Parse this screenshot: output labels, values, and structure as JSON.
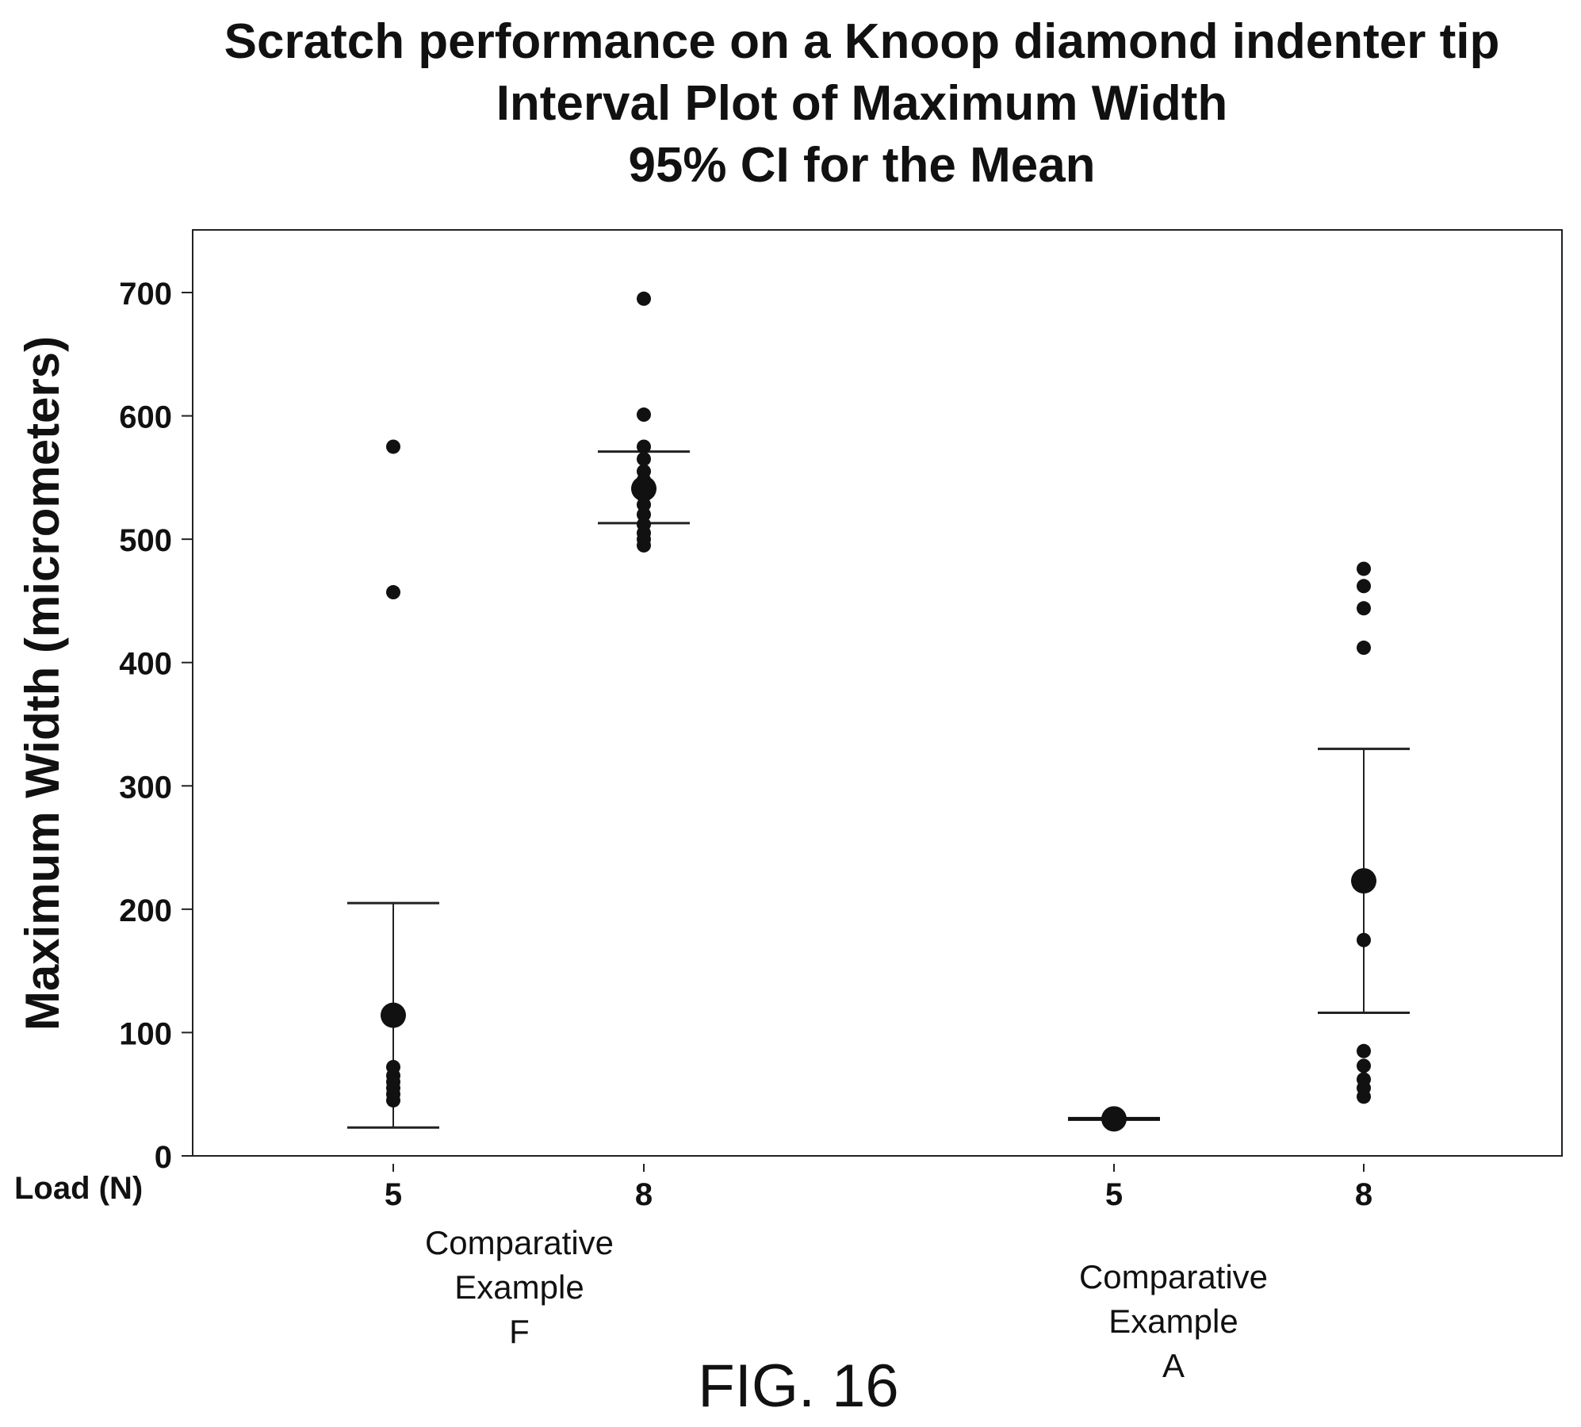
{
  "title_lines": [
    "Scratch performance on a Knoop diamond indenter tip",
    "Interval Plot of Maximum Width",
    "95% CI for the Mean"
  ],
  "figure_caption": "FIG. 16",
  "chart_data": {
    "type": "scatter",
    "subtype": "interval-plot",
    "ylabel": "Maximum Width (micrometers)",
    "xlabel": "Load (N)",
    "ylim": [
      0,
      750
    ],
    "yticks": [
      0,
      100,
      200,
      300,
      400,
      500,
      600,
      700
    ],
    "grid": false,
    "groups": [
      {
        "label_lines": [
          "Comparative",
          "Example",
          "F"
        ],
        "categories": [
          {
            "load": "5",
            "mean": 114,
            "ci": [
              23,
              205
            ],
            "points": [
              575,
              457,
              72,
              65,
              60,
              55,
              50,
              45
            ]
          },
          {
            "load": "8",
            "mean": 541,
            "ci": [
              513,
              571
            ],
            "points": [
              695,
              601,
              575,
              565,
              555,
              548,
              535,
              528,
              520,
              512,
              505,
              500,
              495
            ]
          }
        ]
      },
      {
        "label_lines": [
          "Comparative",
          "Example",
          "A"
        ],
        "categories": [
          {
            "load": "5",
            "mean": 30,
            "ci": [
              30,
              30
            ],
            "points": [
              30
            ]
          },
          {
            "load": "8",
            "mean": 223,
            "ci": [
              116,
              330
            ],
            "points": [
              476,
              462,
              444,
              412,
              175,
              85,
              73,
              62,
              55,
              48
            ]
          }
        ]
      }
    ]
  }
}
